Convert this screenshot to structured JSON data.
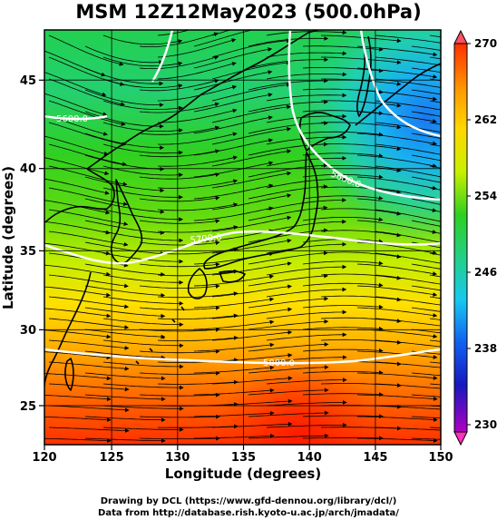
{
  "title": "MSM 12Z12May2023 (500.0hPa)",
  "map": {
    "region": "Japan and surrounding seas",
    "field": "500 hPa geopotential height contours, streamlines, shaded value",
    "lon_range": [
      120,
      150
    ],
    "lat_range": [
      22.5,
      48
    ],
    "contour_labels": [
      "5600.0",
      "5600.0",
      "5700.0",
      "5800.0"
    ]
  },
  "axes": {
    "xlabel": "Longitude (degrees)",
    "ylabel": "Latitude  (degrees)",
    "x_ticks": [
      "120",
      "125",
      "130",
      "135",
      "140",
      "145",
      "150"
    ],
    "y_ticks": [
      "45",
      "40",
      "35",
      "30",
      "25"
    ]
  },
  "colorbar": {
    "ticks": [
      "270",
      "262",
      "254",
      "246",
      "238",
      "230"
    ],
    "colors": [
      "#ff3000",
      "#ff9a00",
      "#ffd800",
      "#c8f000",
      "#30d020",
      "#20d090",
      "#18c8f0",
      "#1060f0",
      "#1818c0",
      "#b000c0",
      "#ff00b0"
    ]
  },
  "footer": {
    "line1": "Drawing by DCL (https://www.gfd-dennou.org/library/dcl/)",
    "line2": "Data from http://database.rish.kyoto-u.ac.jp/arch/jmadata/"
  }
}
